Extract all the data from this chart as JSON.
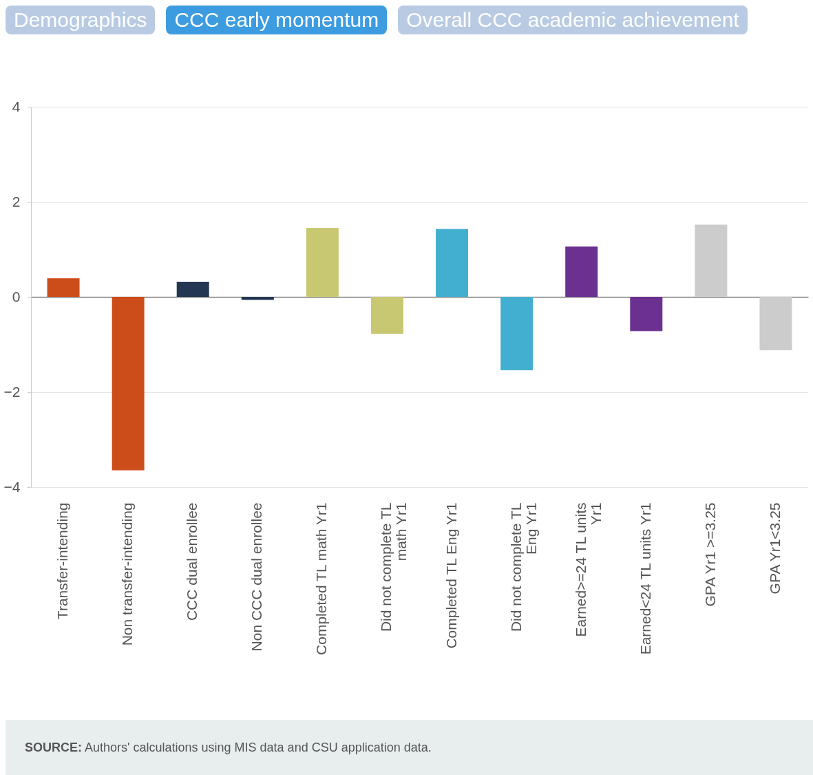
{
  "chart_data": {
    "type": "bar",
    "categories": [
      "Transfer-intending",
      "Non transfer-intending",
      "CCC dual enrollee",
      "Non CCC dual enrollee",
      "Completed TL math Yr1",
      "Did not complete TL math Yr1",
      "Completed TL Eng Yr1",
      "Did not complete TL Eng Yr1",
      "Earned>=24 TL units Yr1",
      "Earned<24 TL units Yr1",
      "GPA Yr1 >=3.25",
      "GPA Yr1<3.25"
    ],
    "values": [
      0.39,
      -3.65,
      0.32,
      -0.06,
      1.45,
      -0.78,
      1.43,
      -1.54,
      1.06,
      -0.72,
      1.52,
      -1.12
    ],
    "colors": [
      "#cc4c1a",
      "#cc4c1a",
      "#243752",
      "#243752",
      "#c9c872",
      "#c9c872",
      "#43afd0",
      "#43afd0",
      "#6b3090",
      "#6b3090",
      "#cccccc",
      "#cccccc"
    ],
    "ylim": [
      -4,
      4
    ],
    "yticks": [
      -4,
      -2,
      0,
      2,
      4
    ],
    "grid": "y",
    "annotations": [
      "Demographics",
      "CCC early momentum",
      "Overall CCC academic achievement",
      "SOURCE: Authors' calculations using MIS data and CSU application data."
    ]
  }
}
